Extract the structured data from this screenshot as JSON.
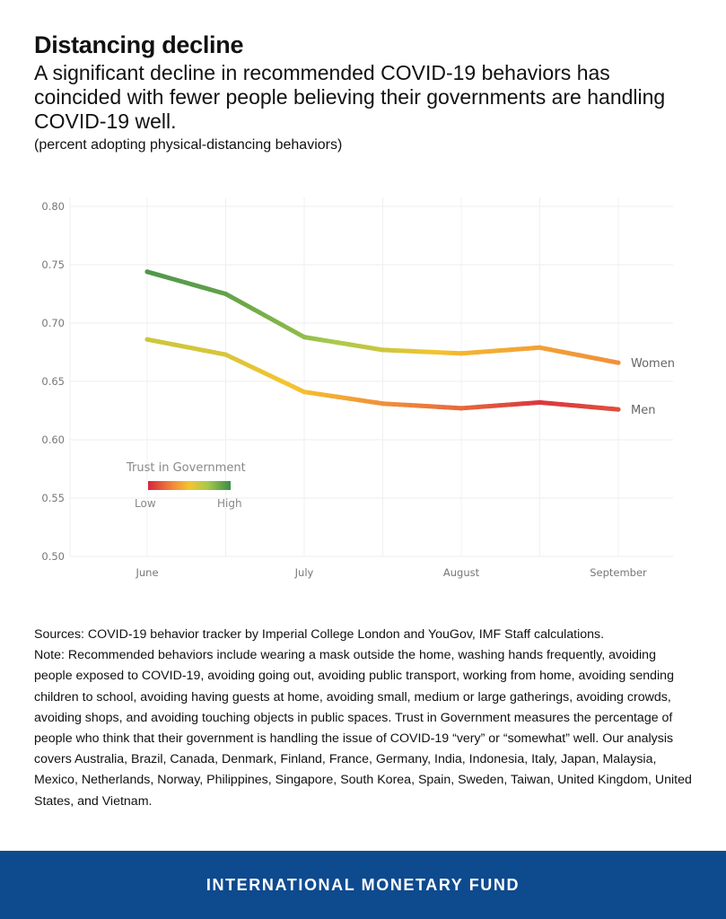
{
  "header": {
    "title": "Distancing decline",
    "subtitle": "A significant decline in recommended COVID-19 behaviors has coincided with fewer people believing their governments are handling COVID-19 well.",
    "unit": "(percent adopting physical-distancing behaviors)"
  },
  "chart_data": {
    "type": "line",
    "x_ticks": [
      "June",
      "July",
      "August",
      "September"
    ],
    "x": [
      0,
      0.5,
      1,
      1.5,
      2,
      2.5,
      3
    ],
    "ylim": [
      0.5,
      0.8
    ],
    "y_ticks": [
      "0.80",
      "0.75",
      "0.70",
      "0.65",
      "0.60",
      "0.55",
      "0.50"
    ],
    "grid": true,
    "series": [
      {
        "name": "Women",
        "values": [
          0.744,
          0.725,
          0.688,
          0.677,
          0.674,
          0.679,
          0.666
        ],
        "trust": [
          0.95,
          0.9,
          0.78,
          0.62,
          0.45,
          0.38,
          0.32
        ]
      },
      {
        "name": "Men",
        "values": [
          0.686,
          0.673,
          0.641,
          0.631,
          0.627,
          0.632,
          0.626
        ],
        "trust": [
          0.62,
          0.58,
          0.48,
          0.32,
          0.2,
          0.05,
          0.12
        ]
      }
    ],
    "legend": {
      "title": "Trust in Government",
      "low": "Low",
      "high": "High",
      "placement": "bottom-left"
    },
    "colors": {
      "low": "#d7263d",
      "mid_low": "#f08a3c",
      "mid": "#f4c430",
      "mid_high": "#a8c94a",
      "high": "#3b8c4a"
    }
  },
  "notes": {
    "sources": "Sources: COVID-19 behavior tracker by Imperial College London and YouGov, IMF Staff calculations.",
    "note": "Note: Recommended behaviors include wearing a mask outside the home, washing hands frequently, avoiding people exposed to COVID-19, avoiding going out, avoiding public transport, working from home, avoiding sending children to school, avoiding having guests at home, avoiding small, medium or large gatherings, avoiding crowds, avoiding shops, and avoiding touching objects in public spaces. Trust in Government measures the percentage of people who think that their government is handling the issue of COVID-19 “very” or “somewhat” well. Our analysis covers Australia, Brazil, Canada, Denmark, Finland, France, Germany, India, Indonesia, Italy, Japan, Malaysia, Mexico, Netherlands, Norway, Philippines, Singapore, South Korea, Spain, Sweden, Taiwan, United Kingdom, United States, and Vietnam."
  },
  "footer": {
    "text": "INTERNATIONAL MONETARY FUND"
  }
}
